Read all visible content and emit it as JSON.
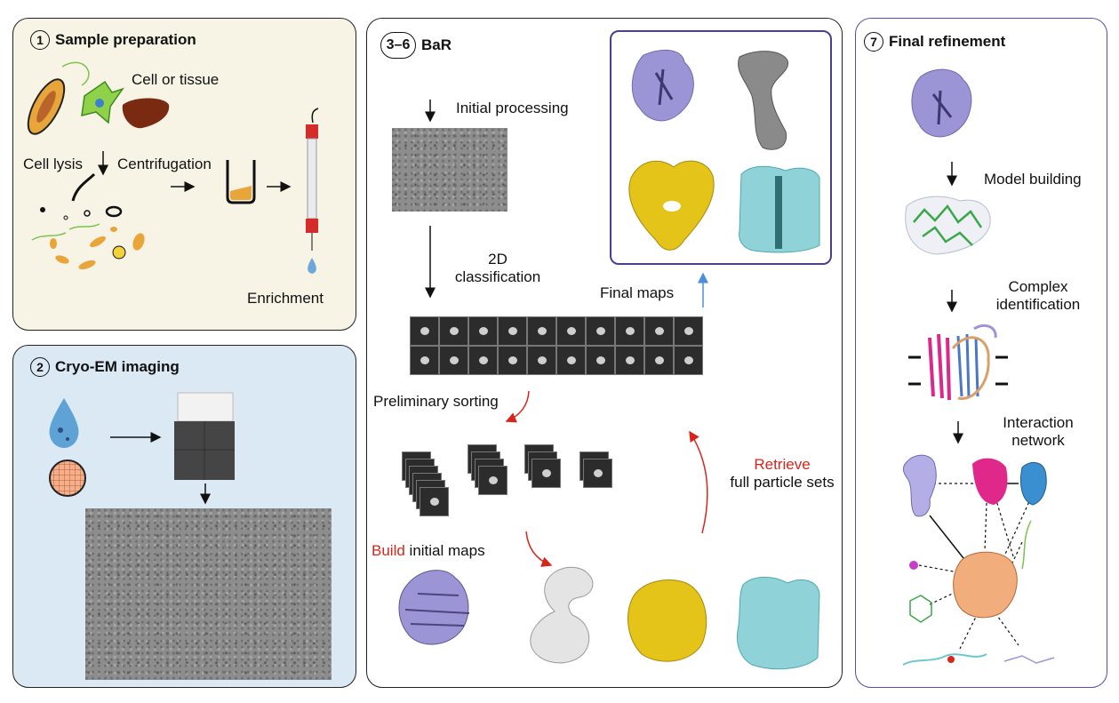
{
  "panel1": {
    "number": "1",
    "title": "Sample preparation",
    "cell_or_tissue": "Cell or tissue",
    "cell_lysis": "Cell lysis",
    "centrifugation": "Centrifugation",
    "enrichment": "Enrichment"
  },
  "panel2": {
    "number": "2",
    "title": "Cryo-EM imaging"
  },
  "panel3": {
    "number": "3–6",
    "title": "BaR",
    "initial_processing": "Initial processing",
    "classification_2d_line1": "2D",
    "classification_2d_line2": "classification",
    "final_maps": "Final maps",
    "preliminary_sorting": "Preliminary sorting",
    "retrieve": "Retrieve",
    "full_particle_sets": "full particle sets",
    "build": "Build",
    "initial_maps": " initial maps"
  },
  "panel7": {
    "number": "7",
    "title": "Final refinement",
    "model_building": "Model building",
    "complex_identification_line1": "Complex",
    "complex_identification_line2": "identification",
    "interaction_network_line1": "Interaction",
    "interaction_network_line2": "network"
  },
  "colors": {
    "accent_red": "#d6261c",
    "final_maps_border": "#4b3f8f",
    "panel1_bg": "#f7f4e6",
    "panel2_bg": "#dbe9f5",
    "arrow_blue": "#4a90d9",
    "purple_map": "#9b95d6",
    "gray_map": "#8a8a8a",
    "yellow_map": "#e5c41a",
    "cyan_map": "#8fd3d8",
    "orange_node": "#f2ad7d",
    "magenta_node": "#e0288a",
    "blue_node": "#3a8fd0"
  }
}
